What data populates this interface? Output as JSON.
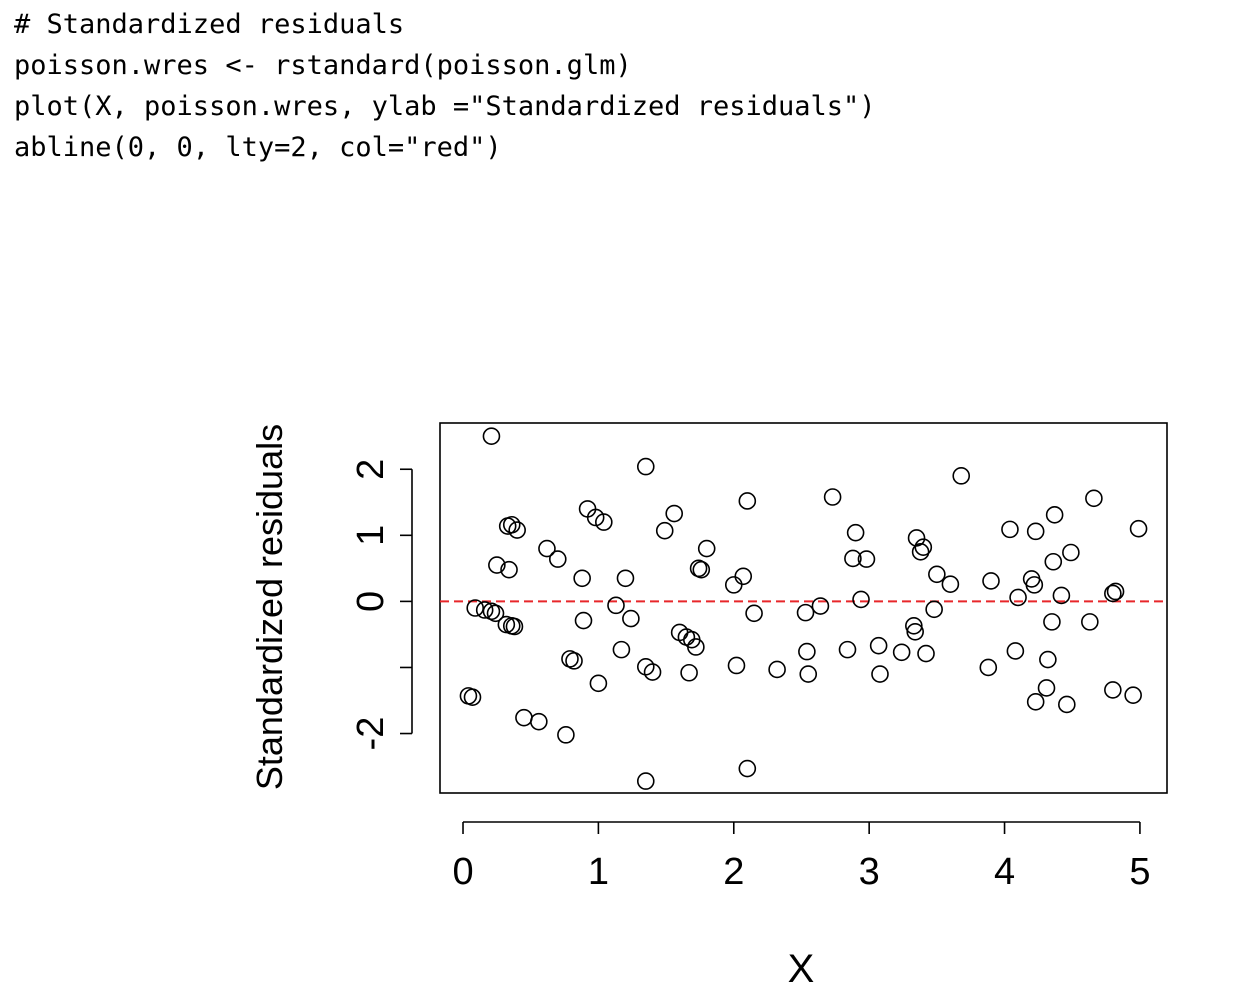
{
  "code": [
    "# Standardized residuals",
    "poisson.wres <- rstandard(poisson.glm)",
    "plot(X, poisson.wres, ylab =\"Standardized residuals\")",
    "abline(0, 0, lty=2, col=\"red\")"
  ],
  "chart_data": {
    "type": "scatter",
    "xlabel": "X",
    "ylabel": "Standardized residuals",
    "xlim": [
      -0.17,
      5.2
    ],
    "ylim": [
      -2.9,
      2.7
    ],
    "xticks": [
      0,
      1,
      2,
      3,
      4,
      5
    ],
    "yticks": [
      -2,
      -1,
      0,
      1,
      2
    ],
    "ytick_labels": [
      "-2",
      "",
      "0",
      "1",
      "2"
    ],
    "reference_line": {
      "y": 0,
      "style": "dashed",
      "color": "#e8262a"
    },
    "grid": false,
    "marker": "open-circle",
    "points": [
      [
        0.04,
        -1.43
      ],
      [
        0.07,
        -1.45
      ],
      [
        0.09,
        -0.1
      ],
      [
        0.16,
        -0.13
      ],
      [
        0.21,
        2.5
      ],
      [
        0.21,
        -0.15
      ],
      [
        0.24,
        -0.18
      ],
      [
        0.25,
        0.55
      ],
      [
        0.32,
        -0.35
      ],
      [
        0.33,
        1.14
      ],
      [
        0.34,
        0.48
      ],
      [
        0.36,
        -0.37
      ],
      [
        0.36,
        1.16
      ],
      [
        0.38,
        -0.38
      ],
      [
        0.4,
        1.08
      ],
      [
        0.45,
        -1.76
      ],
      [
        0.56,
        -1.82
      ],
      [
        0.62,
        0.8
      ],
      [
        0.7,
        0.64
      ],
      [
        0.76,
        -2.02
      ],
      [
        0.79,
        -0.87
      ],
      [
        0.82,
        -0.9
      ],
      [
        0.88,
        0.35
      ],
      [
        0.89,
        -0.29
      ],
      [
        0.92,
        1.4
      ],
      [
        0.98,
        1.27
      ],
      [
        1.0,
        -1.24
      ],
      [
        1.04,
        1.2
      ],
      [
        1.13,
        -0.06
      ],
      [
        1.17,
        -0.73
      ],
      [
        1.2,
        0.35
      ],
      [
        1.24,
        -0.26
      ],
      [
        1.35,
        2.04
      ],
      [
        1.35,
        -0.99
      ],
      [
        1.35,
        -2.72
      ],
      [
        1.4,
        -1.07
      ],
      [
        1.49,
        1.07
      ],
      [
        1.56,
        1.33
      ],
      [
        1.6,
        -0.47
      ],
      [
        1.65,
        -0.54
      ],
      [
        1.67,
        -1.08
      ],
      [
        1.69,
        -0.58
      ],
      [
        1.72,
        -0.69
      ],
      [
        1.74,
        0.5
      ],
      [
        1.76,
        0.48
      ],
      [
        1.8,
        0.8
      ],
      [
        2.0,
        0.25
      ],
      [
        2.02,
        -0.97
      ],
      [
        2.07,
        0.38
      ],
      [
        2.1,
        -2.53
      ],
      [
        2.1,
        1.52
      ],
      [
        2.15,
        -0.18
      ],
      [
        2.32,
        -1.03
      ],
      [
        2.53,
        -0.17
      ],
      [
        2.54,
        -0.76
      ],
      [
        2.55,
        -1.1
      ],
      [
        2.64,
        -0.07
      ],
      [
        2.73,
        1.58
      ],
      [
        2.84,
        -0.73
      ],
      [
        2.88,
        0.65
      ],
      [
        2.9,
        1.04
      ],
      [
        2.94,
        0.03
      ],
      [
        2.98,
        0.64
      ],
      [
        3.07,
        -0.67
      ],
      [
        3.08,
        -1.1
      ],
      [
        3.24,
        -0.77
      ],
      [
        3.33,
        -0.37
      ],
      [
        3.34,
        -0.46
      ],
      [
        3.35,
        0.96
      ],
      [
        3.38,
        0.75
      ],
      [
        3.4,
        0.82
      ],
      [
        3.42,
        -0.79
      ],
      [
        3.48,
        -0.12
      ],
      [
        3.5,
        0.41
      ],
      [
        3.6,
        0.26
      ],
      [
        3.68,
        1.9
      ],
      [
        3.88,
        -1.0
      ],
      [
        3.9,
        0.31
      ],
      [
        4.04,
        1.09
      ],
      [
        4.08,
        -0.75
      ],
      [
        4.1,
        0.06
      ],
      [
        4.2,
        0.34
      ],
      [
        4.22,
        0.25
      ],
      [
        4.23,
        1.06
      ],
      [
        4.23,
        -1.52
      ],
      [
        4.31,
        -1.31
      ],
      [
        4.32,
        -0.88
      ],
      [
        4.35,
        -0.31
      ],
      [
        4.36,
        0.6
      ],
      [
        4.37,
        1.31
      ],
      [
        4.42,
        0.09
      ],
      [
        4.46,
        -1.56
      ],
      [
        4.49,
        0.74
      ],
      [
        4.63,
        -0.31
      ],
      [
        4.66,
        1.56
      ],
      [
        4.8,
        0.12
      ],
      [
        4.8,
        -1.34
      ],
      [
        4.82,
        0.15
      ],
      [
        4.95,
        -1.42
      ],
      [
        4.99,
        1.1
      ]
    ]
  }
}
